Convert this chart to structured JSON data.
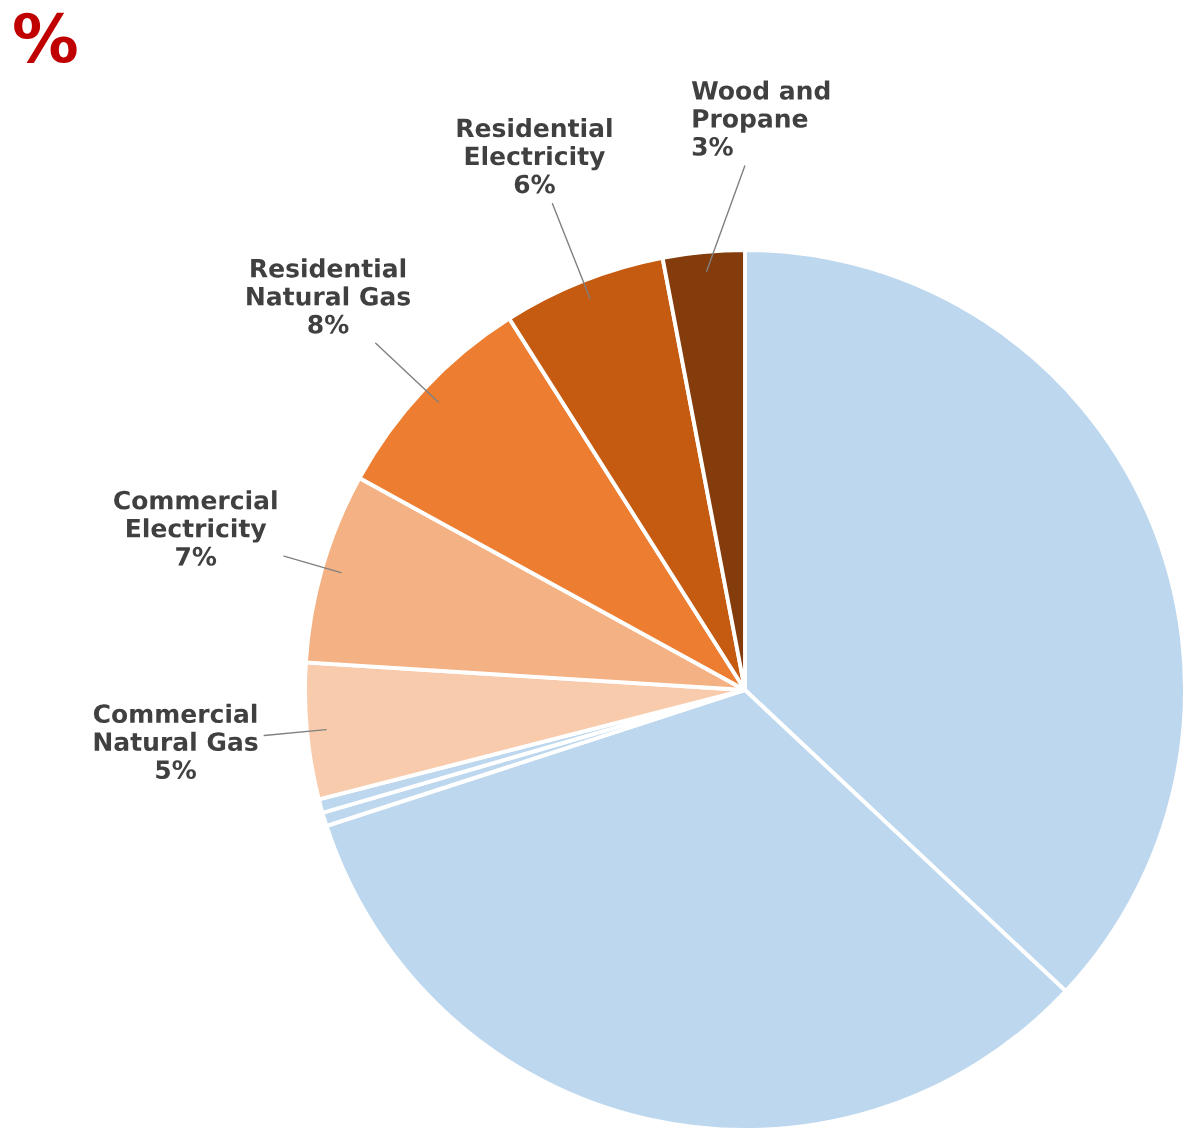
{
  "chart_data": {
    "type": "pie",
    "categories": [
      null,
      null,
      null,
      null,
      "Commercial\nNatural Gas",
      "Commercial\nElectricity",
      "Residential\nNatural Gas",
      "Residential\nElectricity",
      "Wood and\nPropane"
    ],
    "values": [
      37,
      33,
      0.5,
      0.5,
      5,
      7,
      8,
      6,
      3
    ],
    "value_labels": [
      null,
      null,
      null,
      null,
      "5%",
      "7%",
      "8%",
      "6%",
      "3%"
    ],
    "colors": [
      "#bdd7ee",
      "#bdd7ee",
      "#bdd7ee",
      "#bdd7ee",
      "#f8cbad",
      "#f4b183",
      "#ed7d31",
      "#c55a11",
      "#843c0c"
    ],
    "annotations": [
      "%"
    ],
    "legend": false
  }
}
